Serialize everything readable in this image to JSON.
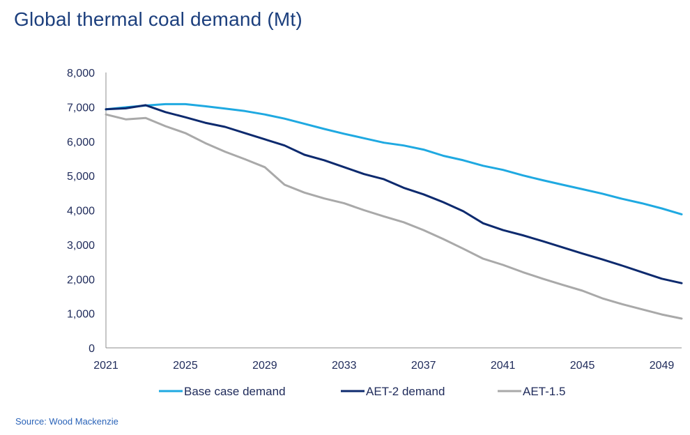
{
  "title": "Global thermal coal demand (Mt)",
  "source": "Source: Wood Mackenzie",
  "chart_data": {
    "type": "line",
    "title": "Global thermal coal demand (Mt)",
    "xlabel": "",
    "ylabel": "",
    "xlim": [
      2021,
      2050
    ],
    "ylim": [
      0,
      8000
    ],
    "x_ticks": [
      "2021",
      "2025",
      "2029",
      "2033",
      "2037",
      "2041",
      "2045",
      "2049"
    ],
    "y_ticks": [
      "0",
      "1,000",
      "2,000",
      "3,000",
      "4,000",
      "5,000",
      "6,000",
      "7,000",
      "8,000"
    ],
    "grid": false,
    "legend": "bottom",
    "x": [
      2021,
      2022,
      2023,
      2024,
      2025,
      2026,
      2027,
      2028,
      2029,
      2030,
      2031,
      2032,
      2033,
      2034,
      2035,
      2036,
      2037,
      2038,
      2039,
      2040,
      2041,
      2042,
      2043,
      2044,
      2045,
      2046,
      2047,
      2048,
      2049,
      2050
    ],
    "series": [
      {
        "name": "Base case demand",
        "color": "#1fa9e1",
        "values": [
          6930,
          6990,
          7040,
          7080,
          7080,
          7020,
          6950,
          6880,
          6780,
          6660,
          6510,
          6360,
          6220,
          6090,
          5960,
          5880,
          5760,
          5580,
          5450,
          5290,
          5170,
          5010,
          4870,
          4740,
          4610,
          4480,
          4330,
          4200,
          4050,
          3880
        ]
      },
      {
        "name": "AET-2 demand",
        "color": "#0d2a6e",
        "values": [
          6930,
          6960,
          7050,
          6850,
          6700,
          6540,
          6420,
          6240,
          6060,
          5880,
          5610,
          5450,
          5250,
          5050,
          4900,
          4650,
          4460,
          4230,
          3970,
          3620,
          3420,
          3270,
          3100,
          2920,
          2740,
          2570,
          2390,
          2200,
          2010,
          1880
        ]
      },
      {
        "name": "AET-1.5",
        "color": "#a9a9a9",
        "values": [
          6780,
          6640,
          6680,
          6440,
          6240,
          5950,
          5700,
          5480,
          5250,
          4740,
          4510,
          4340,
          4200,
          4000,
          3820,
          3650,
          3420,
          3160,
          2880,
          2590,
          2410,
          2200,
          2010,
          1830,
          1660,
          1440,
          1270,
          1120,
          970,
          850
        ]
      }
    ]
  }
}
